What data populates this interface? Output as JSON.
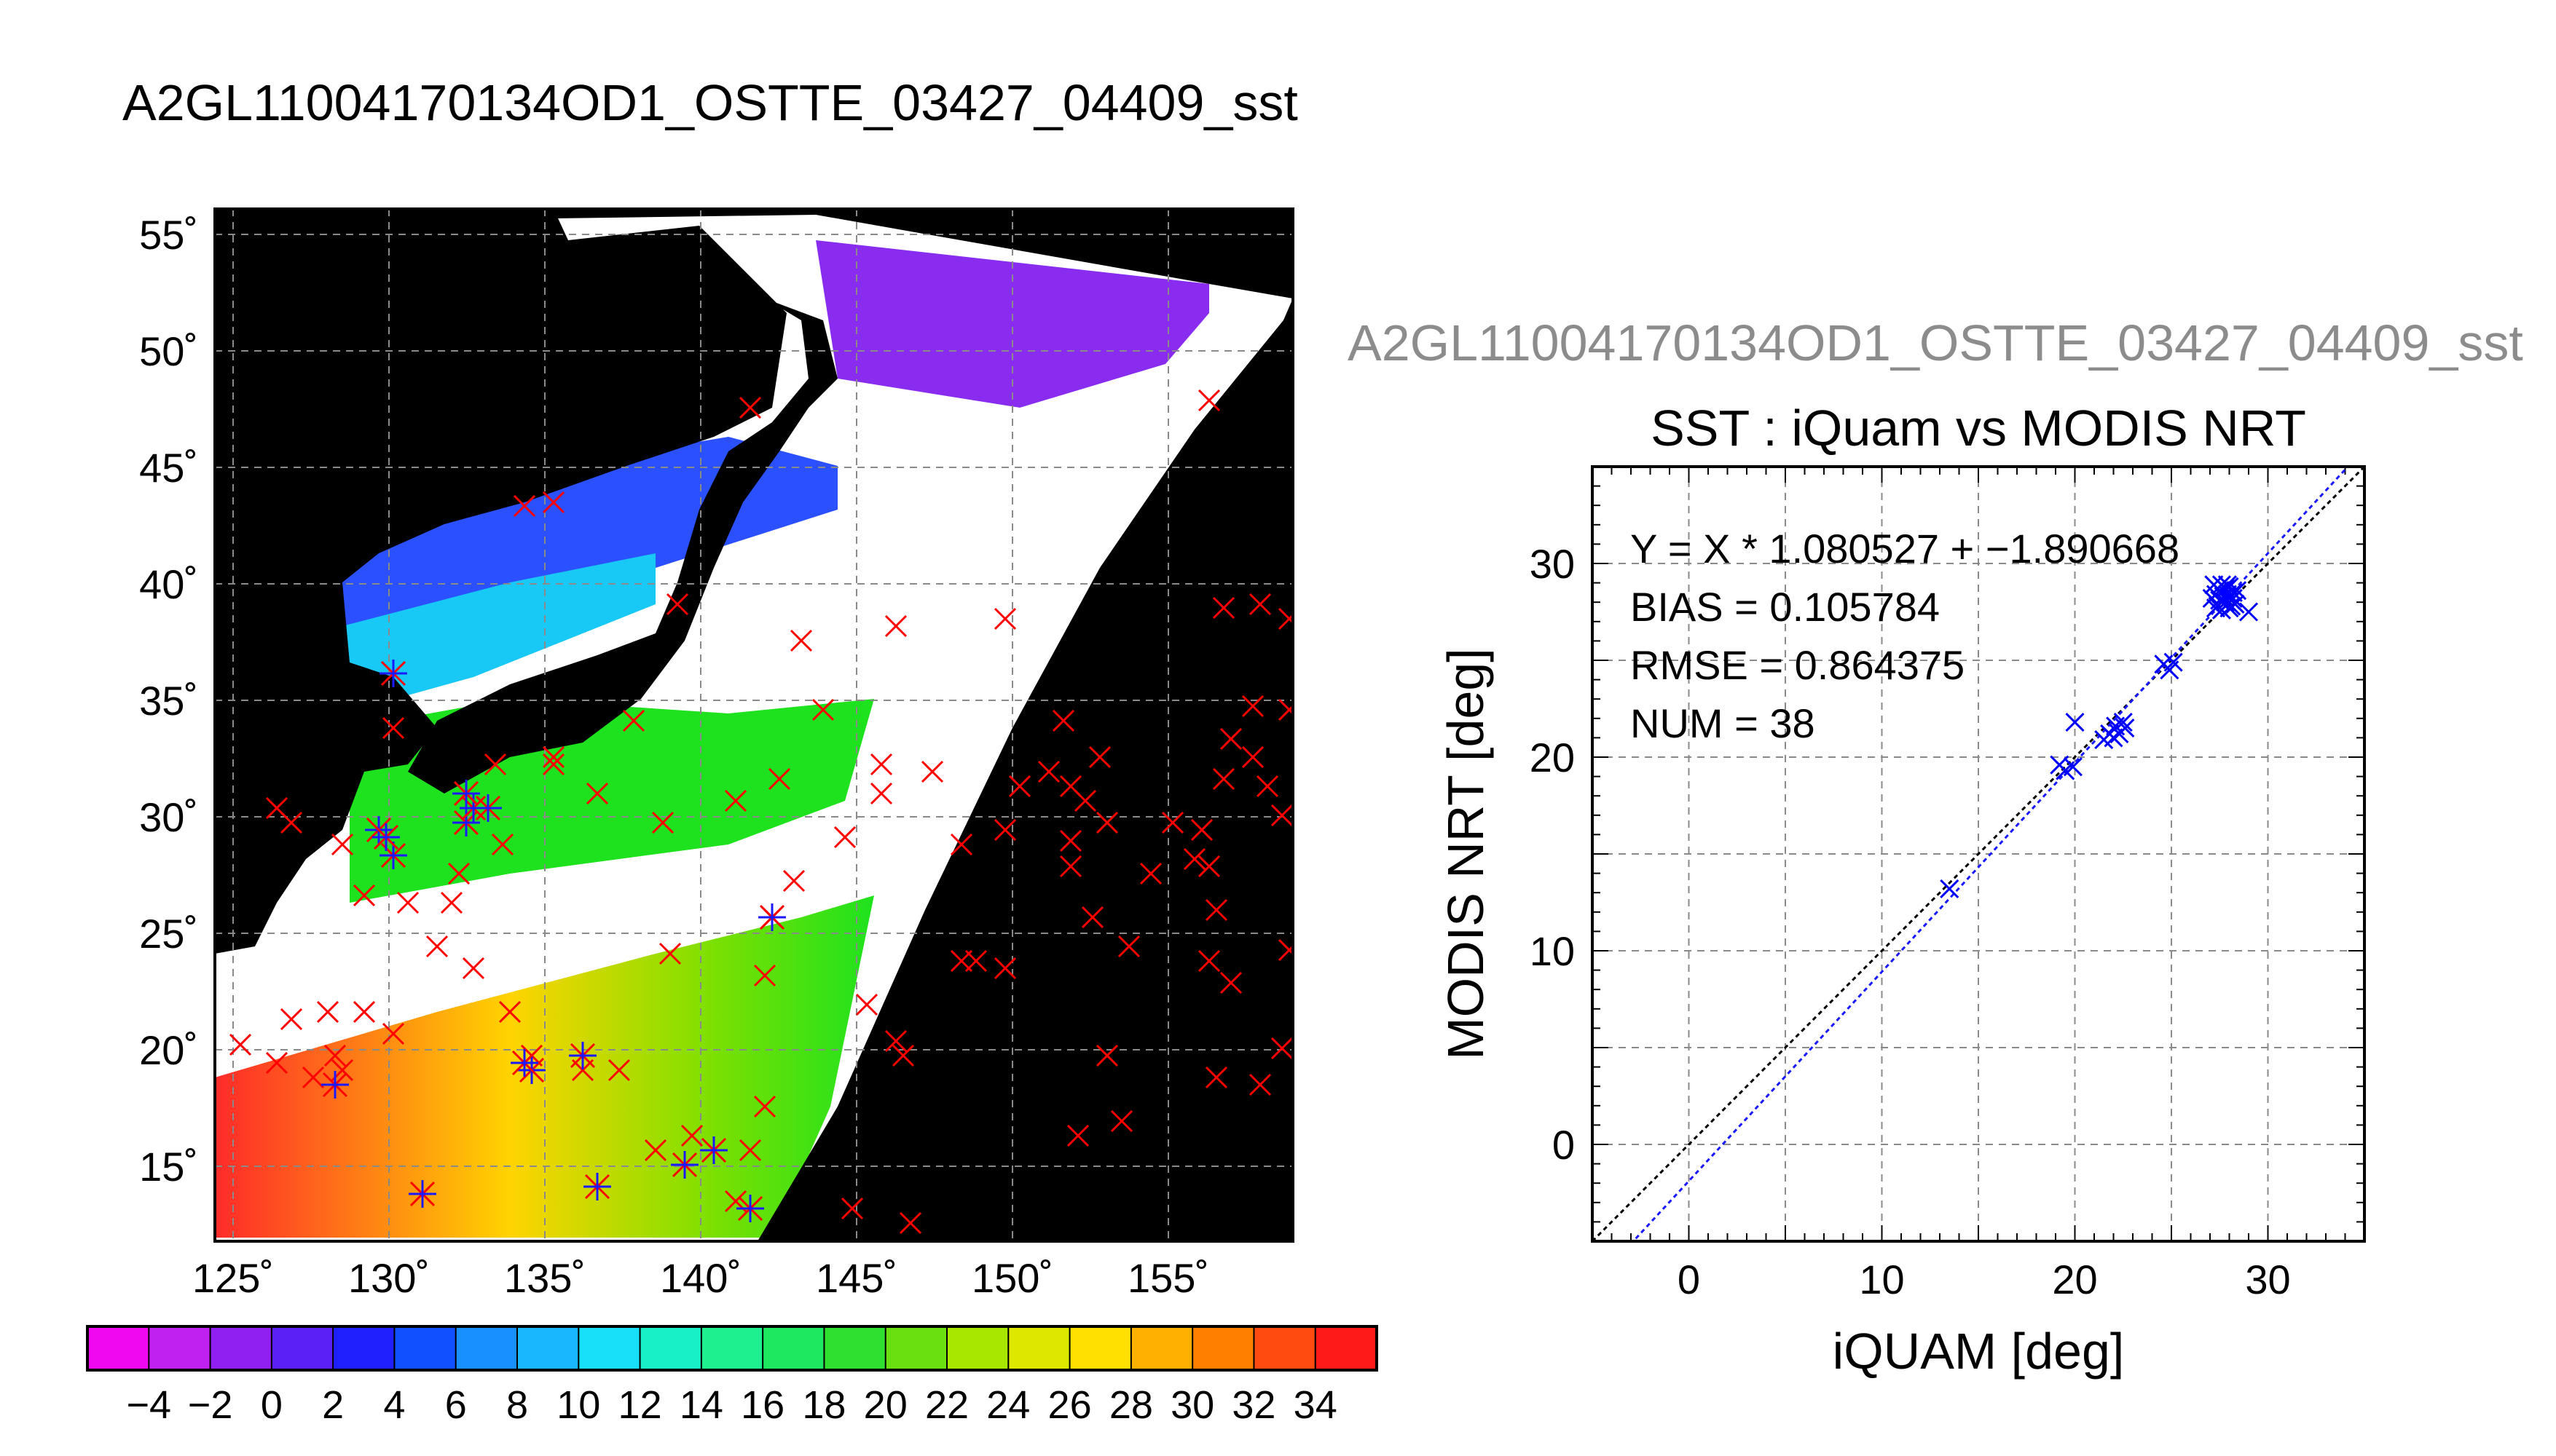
{
  "map_title": "A2GL11004170134OD1_OSTTE_03427_04409_sst",
  "scatter_header": "A2GL11004170134OD1_OSTTE_03427_04409_sst",
  "map": {
    "lat_ticks": [
      "55˚",
      "50˚",
      "45˚",
      "40˚",
      "35˚",
      "30˚",
      "25˚",
      "20˚",
      "15˚"
    ],
    "lon_ticks": [
      "125˚",
      "130˚",
      "135˚",
      "140˚",
      "145˚",
      "150˚",
      "155˚"
    ],
    "colorbar_labels": [
      "−4",
      "−2",
      "0",
      "2",
      "4",
      "6",
      "8",
      "10",
      "12",
      "14",
      "16",
      "18",
      "20",
      "22",
      "24",
      "26",
      "28",
      "30",
      "32",
      "34"
    ],
    "colors": {
      "background": "#000000",
      "cloud": "#ffffff",
      "marker_outside": "#ff0000",
      "marker_inside": "#1a1aff"
    }
  },
  "chart_data": {
    "type": "scatter",
    "title": "SST : iQuam vs MODIS NRT",
    "xlabel": "iQUAM [deg]",
    "ylabel": "MODIS NRT [deg]",
    "xlim": [
      -5,
      35
    ],
    "ylim": [
      -5,
      35
    ],
    "x_ticks": [
      "0",
      "10",
      "20",
      "30"
    ],
    "y_ticks": [
      "0",
      "10",
      "20",
      "30"
    ],
    "grid": true,
    "stats": [
      "Y = X * 1.080527 + −1.890668",
      "BIAS = 0.105784",
      "RMSE = 0.864375",
      "NUM = 38"
    ],
    "fit": {
      "slope": 1.080527,
      "intercept": -1.890668
    },
    "marker_color": "#0000ff",
    "points": [
      [
        13.5,
        13.2
      ],
      [
        19.2,
        19.6
      ],
      [
        19.5,
        19.3
      ],
      [
        19.9,
        19.5
      ],
      [
        20.0,
        21.8
      ],
      [
        21.5,
        20.9
      ],
      [
        21.8,
        21.2
      ],
      [
        22.0,
        21.0
      ],
      [
        22.1,
        21.6
      ],
      [
        22.3,
        21.2
      ],
      [
        22.5,
        21.8
      ],
      [
        22.6,
        21.5
      ],
      [
        24.6,
        24.8
      ],
      [
        24.9,
        24.5
      ],
      [
        25.1,
        24.9
      ],
      [
        27.1,
        28.2
      ],
      [
        27.2,
        28.9
      ],
      [
        27.3,
        28.4
      ],
      [
        27.4,
        27.8
      ],
      [
        27.5,
        28.6
      ],
      [
        27.6,
        27.6
      ],
      [
        27.6,
        28.9
      ],
      [
        27.7,
        28.3
      ],
      [
        27.8,
        28.0
      ],
      [
        27.8,
        28.7
      ],
      [
        27.9,
        28.4
      ],
      [
        28.0,
        27.7
      ],
      [
        28.0,
        28.8
      ],
      [
        28.1,
        28.1
      ],
      [
        28.2,
        28.5
      ],
      [
        28.3,
        27.9
      ],
      [
        28.4,
        28.6
      ],
      [
        27.3,
        27.7
      ],
      [
        27.5,
        28.1
      ],
      [
        27.9,
        28.9
      ],
      [
        28.1,
        27.8
      ],
      [
        28.2,
        28.2
      ],
      [
        29.0,
        27.5
      ]
    ]
  }
}
